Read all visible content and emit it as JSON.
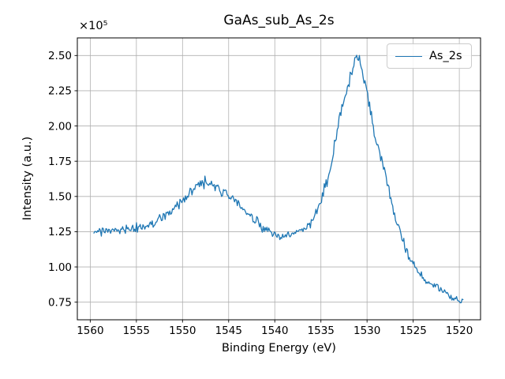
{
  "figure": {
    "kind": "matplotlib-figure",
    "background": "#ffffff"
  },
  "chart_data": {
    "type": "line",
    "title": "GaAs_sub_As_2s",
    "xlabel": "Binding Energy (eV)",
    "ylabel": "Intensity (a.u.)",
    "grid": true,
    "grid_color": "#b0b0b0",
    "axis_color": "#000000",
    "x_inverted": true,
    "xlim": [
      1561.4,
      1517.7
    ],
    "ylim": [
      0.625,
      2.625
    ],
    "x_ticks": [
      1560,
      1555,
      1550,
      1545,
      1540,
      1535,
      1530,
      1525,
      1520
    ],
    "x_tick_labels": [
      "1560",
      "1555",
      "1550",
      "1545",
      "1540",
      "1535",
      "1530",
      "1525",
      "1520"
    ],
    "y_ticks": [
      0.75,
      1.0,
      1.25,
      1.5,
      1.75,
      2.0,
      2.25,
      2.5
    ],
    "y_tick_labels": [
      "0.75",
      "1.00",
      "1.25",
      "1.50",
      "1.75",
      "2.00",
      "2.25",
      "2.50"
    ],
    "y_offset_label": "×10⁵",
    "y_scale_factor": 100000,
    "legend": {
      "position": "upper right",
      "entries": [
        {
          "label": "As_2s",
          "color": "#1f77b4"
        }
      ]
    },
    "series": [
      {
        "name": "As_2s",
        "color": "#1f77b4",
        "x_start": 1559.6,
        "x_end": 1519.6,
        "n_points": 400,
        "noise_sigma_ref": 0.017,
        "noise_ref_level": 1.25,
        "noise_seed": 77,
        "peaks_note": "broad loss hump ~1.60e5 at ~1548 eV; main As 2s peak ~2.53e5 at ~1531 eV; valley ~1.21e5 at ~1539.5 eV",
        "envelope_points": [
          [
            1559.6,
            1.255
          ],
          [
            1558.0,
            1.252
          ],
          [
            1556.5,
            1.258
          ],
          [
            1555.0,
            1.272
          ],
          [
            1554.0,
            1.288
          ],
          [
            1552.5,
            1.33
          ],
          [
            1551.5,
            1.385
          ],
          [
            1550.5,
            1.435
          ],
          [
            1550.0,
            1.468
          ],
          [
            1549.0,
            1.53
          ],
          [
            1548.3,
            1.585
          ],
          [
            1547.6,
            1.598
          ],
          [
            1547.0,
            1.588
          ],
          [
            1546.0,
            1.548
          ],
          [
            1545.0,
            1.505
          ],
          [
            1544.0,
            1.445
          ],
          [
            1543.0,
            1.38
          ],
          [
            1542.0,
            1.315
          ],
          [
            1541.0,
            1.265
          ],
          [
            1540.2,
            1.228
          ],
          [
            1539.5,
            1.212
          ],
          [
            1538.8,
            1.215
          ],
          [
            1538.0,
            1.232
          ],
          [
            1537.0,
            1.262
          ],
          [
            1536.3,
            1.3
          ],
          [
            1535.8,
            1.35
          ],
          [
            1535.3,
            1.42
          ],
          [
            1535.0,
            1.48
          ],
          [
            1534.6,
            1.56
          ],
          [
            1534.2,
            1.625
          ],
          [
            1533.8,
            1.75
          ],
          [
            1533.4,
            1.89
          ],
          [
            1533.0,
            2.04
          ],
          [
            1532.5,
            2.17
          ],
          [
            1532.0,
            2.3
          ],
          [
            1531.5,
            2.42
          ],
          [
            1531.2,
            2.495
          ],
          [
            1531.0,
            2.52
          ],
          [
            1530.6,
            2.4
          ],
          [
            1530.1,
            2.26
          ],
          [
            1529.6,
            2.08
          ],
          [
            1529.2,
            1.95
          ],
          [
            1528.6,
            1.8
          ],
          [
            1528.0,
            1.65
          ],
          [
            1527.5,
            1.5
          ],
          [
            1527.0,
            1.37
          ],
          [
            1526.4,
            1.25
          ],
          [
            1525.8,
            1.13
          ],
          [
            1525.2,
            1.03
          ],
          [
            1524.6,
            0.97
          ],
          [
            1524.0,
            0.93
          ],
          [
            1523.5,
            0.905
          ],
          [
            1523.0,
            0.882
          ],
          [
            1522.5,
            0.86
          ],
          [
            1522.0,
            0.84
          ],
          [
            1521.5,
            0.82
          ],
          [
            1521.0,
            0.8
          ],
          [
            1520.5,
            0.784
          ],
          [
            1520.0,
            0.765
          ],
          [
            1519.6,
            0.748
          ]
        ]
      }
    ]
  }
}
